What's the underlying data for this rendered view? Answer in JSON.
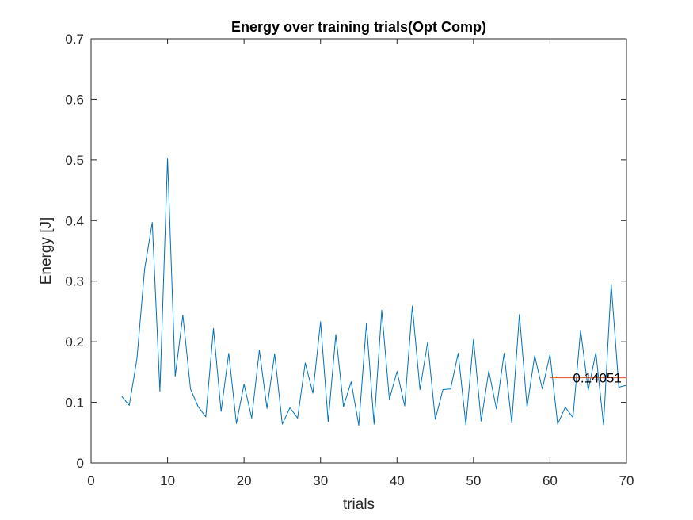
{
  "chart_data": {
    "type": "line",
    "title": "Energy over training trials(Opt Comp)",
    "xlabel": "trials",
    "ylabel": "Energy [J]",
    "xlim": [
      0,
      70
    ],
    "ylim": [
      0,
      0.7
    ],
    "xticks": [
      0,
      10,
      20,
      30,
      40,
      50,
      60,
      70
    ],
    "yticks": [
      0,
      0.1,
      0.2,
      0.3,
      0.4,
      0.5,
      0.6,
      0.7
    ],
    "xtick_labels": [
      "0",
      "10",
      "20",
      "30",
      "40",
      "50",
      "60",
      "70"
    ],
    "ytick_labels": [
      "0",
      "0.1",
      "0.2",
      "0.3",
      "0.4",
      "0.5",
      "0.6",
      "0.7"
    ],
    "grid": false,
    "box": true,
    "series": [
      {
        "color": "#0072BD",
        "x": [
          4,
          5,
          6,
          7,
          8,
          9,
          10,
          11,
          12,
          13,
          14,
          15,
          16,
          17,
          18,
          19,
          20,
          21,
          22,
          23,
          24,
          25,
          26,
          27,
          28,
          29,
          30,
          31,
          32,
          33,
          34,
          35,
          36,
          37,
          38,
          39,
          40,
          41,
          42,
          43,
          44,
          45,
          46,
          47,
          48,
          49,
          50,
          51,
          52,
          53,
          54,
          55,
          56,
          57,
          58,
          59,
          60,
          61,
          62,
          63,
          64,
          65,
          66,
          67,
          68,
          69,
          70
        ],
        "y": [
          0.11,
          0.095,
          0.172,
          0.32,
          0.397,
          0.118,
          0.503,
          0.143,
          0.244,
          0.122,
          0.093,
          0.076,
          0.222,
          0.085,
          0.181,
          0.065,
          0.13,
          0.074,
          0.186,
          0.09,
          0.18,
          0.064,
          0.091,
          0.074,
          0.165,
          0.115,
          0.233,
          0.068,
          0.212,
          0.093,
          0.134,
          0.062,
          0.23,
          0.064,
          0.252,
          0.105,
          0.151,
          0.094,
          0.259,
          0.121,
          0.199,
          0.072,
          0.121,
          0.122,
          0.181,
          0.063,
          0.204,
          0.069,
          0.152,
          0.089,
          0.181,
          0.066,
          0.245,
          0.092,
          0.177,
          0.122,
          0.179,
          0.064,
          0.092,
          0.075,
          0.219,
          0.12,
          0.182,
          0.063,
          0.295,
          0.125,
          0.128
        ]
      },
      {
        "color": "#D95319",
        "x": [
          60,
          70
        ],
        "y": [
          0.14051,
          0.14051
        ]
      }
    ],
    "annotations": [
      {
        "text": "0.14051",
        "x": 63,
        "y": 0.14051
      }
    ]
  }
}
